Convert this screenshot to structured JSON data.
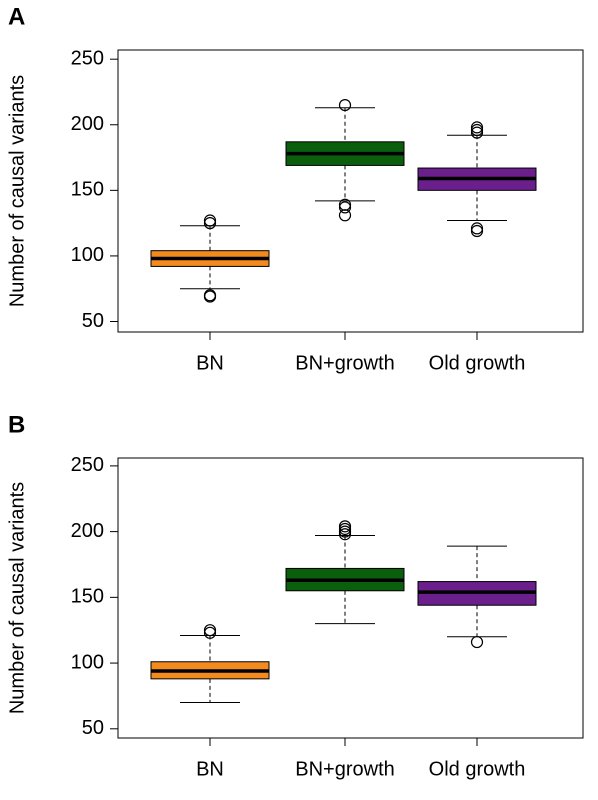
{
  "chart_data": [
    {
      "type": "boxplot",
      "panel_label": "A",
      "y_label": "Number of causal variants",
      "categories": [
        "BN",
        "BN+growth",
        "Old growth"
      ],
      "colors": [
        "#f28a1e",
        "#0b5e0b",
        "#6a1f8c"
      ],
      "boxes": [
        {
          "min": 75,
          "q1": 92,
          "median": 98,
          "q3": 104,
          "max": 123,
          "outliers": [
            125,
            127,
            70,
            69
          ]
        },
        {
          "min": 142,
          "q1": 169,
          "median": 178,
          "q3": 187,
          "max": 213,
          "outliers": [
            215,
            139,
            137,
            131
          ]
        },
        {
          "min": 127,
          "q1": 150,
          "median": 159,
          "q3": 167,
          "max": 192,
          "outliers": [
            198,
            196,
            194,
            121,
            119
          ]
        }
      ],
      "ylim": [
        42,
        257
      ],
      "yticks": [
        50,
        100,
        150,
        200,
        250
      ]
    },
    {
      "type": "boxplot",
      "panel_label": "B",
      "y_label": "Number of causal variants",
      "categories": [
        "BN",
        "BN+growth",
        "Old growth"
      ],
      "colors": [
        "#f28a1e",
        "#0b5e0b",
        "#6a1f8c"
      ],
      "boxes": [
        {
          "min": 70,
          "q1": 88,
          "median": 94,
          "q3": 101,
          "max": 121,
          "outliers": [
            125,
            123
          ]
        },
        {
          "min": 130,
          "q1": 155,
          "median": 163,
          "q3": 172,
          "max": 197,
          "outliers": [
            204,
            202,
            200,
            198
          ]
        },
        {
          "min": 120,
          "q1": 144,
          "median": 154,
          "q3": 162,
          "max": 189,
          "outliers": [
            116
          ]
        }
      ],
      "ylim": [
        43,
        256
      ],
      "yticks": [
        50,
        100,
        150,
        200,
        250
      ]
    }
  ]
}
